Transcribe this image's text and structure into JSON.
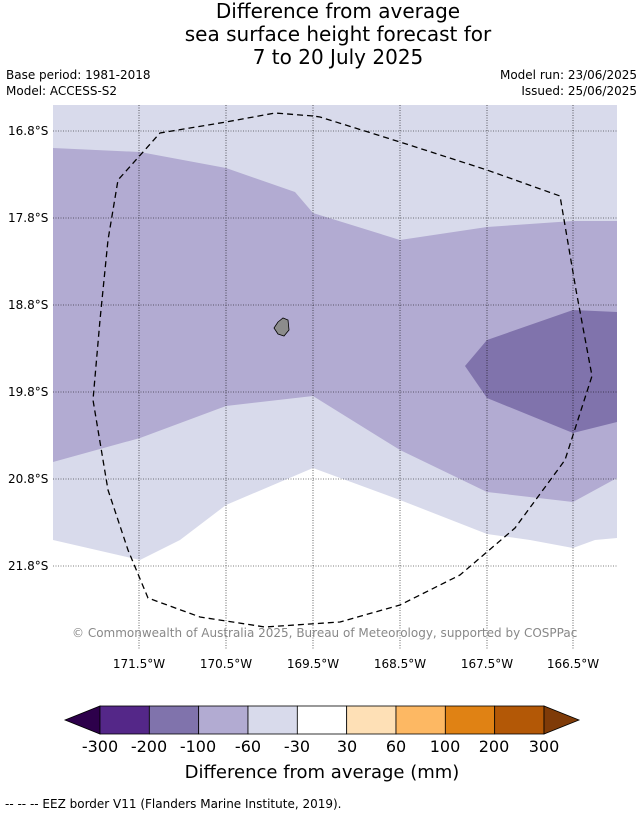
{
  "title": {
    "line1": "Difference from average",
    "line2": "sea surface height forecast for",
    "line3": "7 to 20 July 2025"
  },
  "meta": {
    "base_period": "Base period: 1981-2018",
    "model": "Model: ACCESS-S2",
    "model_run": "Model run: 23/06/2025",
    "issued": "Issued: 25/06/2025"
  },
  "map": {
    "lat_labels": [
      "16.8°S",
      "17.8°S",
      "18.8°S",
      "19.8°S",
      "20.8°S",
      "21.8°S"
    ],
    "lon_labels": [
      "171.5°W",
      "170.5°W",
      "169.5°W",
      "168.5°W",
      "167.5°W",
      "166.5°W"
    ],
    "copyright": "© Commonwealth of Australia 2025, Bureau of Meteorology, supported by COSPPac",
    "land_color": "#8c8c8c",
    "eez_line_style": "dashed"
  },
  "colorbar": {
    "ticks": [
      "-300",
      "-200",
      "-100",
      "-60",
      "-30",
      "30",
      "60",
      "100",
      "200",
      "300"
    ],
    "colors": [
      "#2d004b",
      "#542788",
      "#8073ac",
      "#b2abd2",
      "#d8daeb",
      "#ffffff",
      "#fee0b6",
      "#fdb863",
      "#e08214",
      "#b35806",
      "#7f3b08"
    ],
    "title": "Difference from average (mm)"
  },
  "footer": {
    "eez_note": "--  --  -- EEZ border V11 (Flanders Marine Institute, 2019)."
  }
}
